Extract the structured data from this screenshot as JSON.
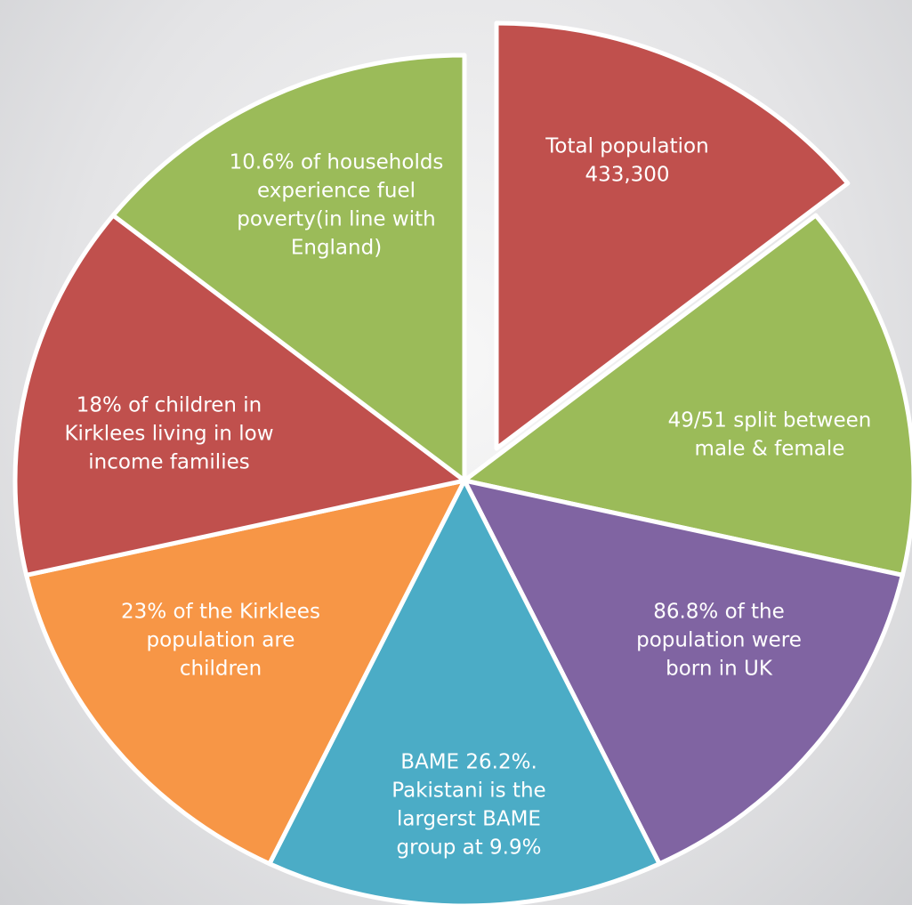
{
  "segments": [
    {
      "lines": [
        "Total population",
        "433,300"
      ],
      "color": "#c0504d"
    },
    {
      "lines": [
        "49/51 split between",
        "male & female"
      ],
      "color": "#9bbb59"
    },
    {
      "lines": [
        "86.8% of the",
        "population were",
        "born in UK"
      ],
      "color": "#8064a2"
    },
    {
      "lines": [
        "BAME 26.2%.",
        "Pakistani is the",
        "largerst BAME",
        "group at 9.9%"
      ],
      "color": "#4bacc6"
    },
    {
      "lines": [
        "23% of the Kirklees",
        "population are",
        "children"
      ],
      "color": "#f79646"
    },
    {
      "lines": [
        "18% of children in",
        "Kirklees living in low",
        "income families"
      ],
      "color": "#c0504d"
    },
    {
      "lines": [
        "10.6% of households",
        "experience fuel",
        "poverty(in line with",
        "England)"
      ],
      "color": "#9bbb59"
    }
  ]
}
